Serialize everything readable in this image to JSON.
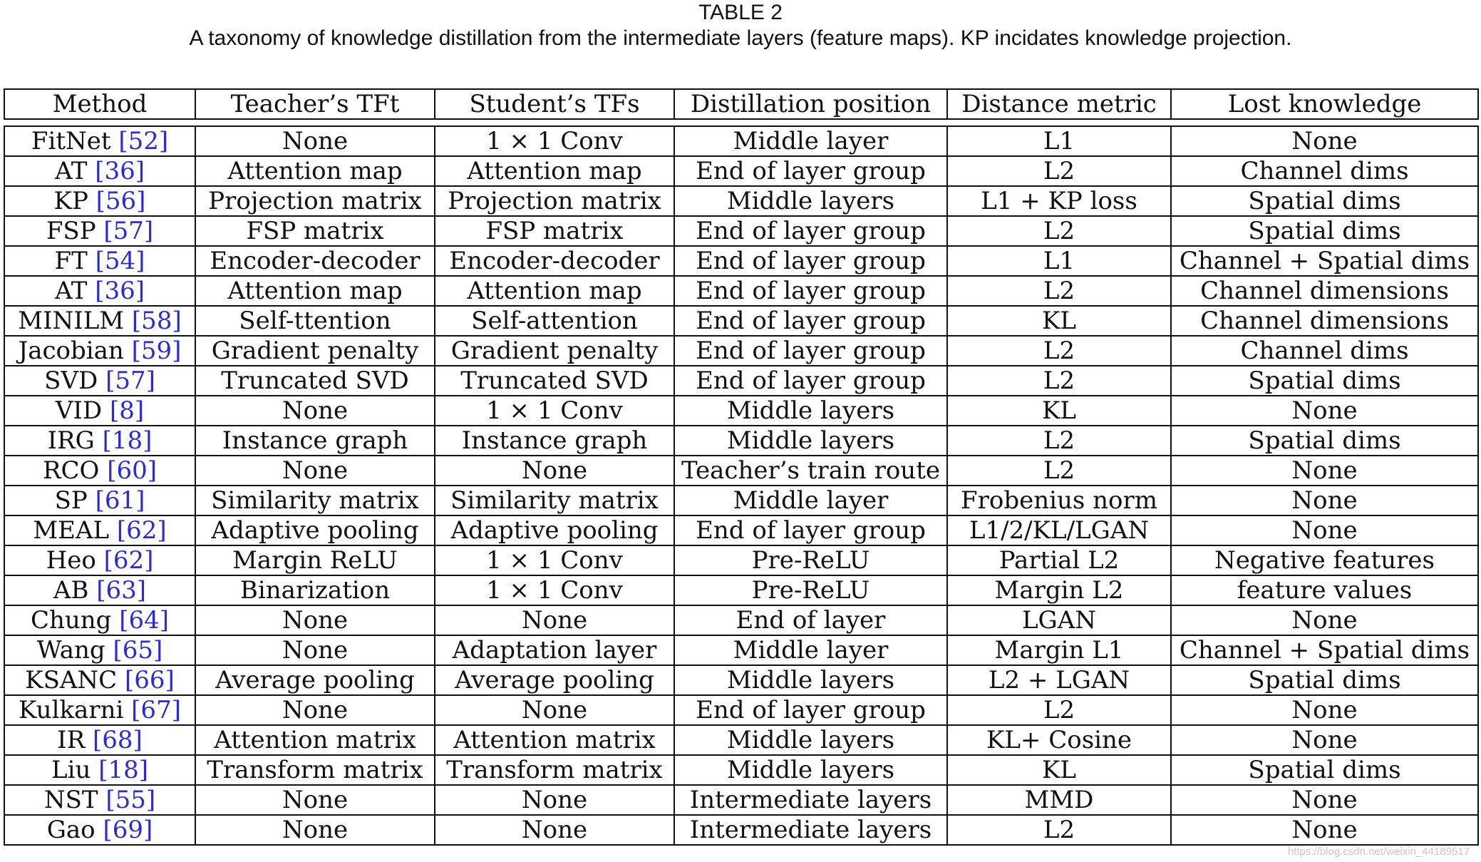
{
  "caption": {
    "label": "TABLE 2",
    "text": "A taxonomy of knowledge distillation from the intermediate layers (feature maps). KP incidates knowledge projection."
  },
  "table": {
    "headers": [
      "Method",
      "Teacher’s TFt",
      "Student’s TFs",
      "Distillation position",
      "Distance metric",
      "Lost knowledge"
    ],
    "rows": [
      {
        "method": "FitNet",
        "ref": "[52]",
        "teacher": "None",
        "student": "1 × 1 Conv",
        "position": "Middle layer",
        "metric": "L1",
        "lost": "None"
      },
      {
        "method": "AT",
        "ref": "[36]",
        "teacher": "Attention map",
        "student": "Attention map",
        "position": "End of layer group",
        "metric": "L2",
        "lost": "Channel dims"
      },
      {
        "method": "KP",
        "ref": "[56]",
        "teacher": "Projection matrix",
        "student": "Projection matrix",
        "position": "Middle layers",
        "metric": "L1 + KP loss",
        "lost": "Spatial dims"
      },
      {
        "method": "FSP",
        "ref": "[57]",
        "teacher": "FSP matrix",
        "student": "FSP matrix",
        "position": "End of layer group",
        "metric": "L2",
        "lost": "Spatial dims"
      },
      {
        "method": "FT",
        "ref": "[54]",
        "teacher": "Encoder-decoder",
        "student": "Encoder-decoder",
        "position": "End of layer group",
        "metric": "L1",
        "lost": "Channel + Spatial dims"
      },
      {
        "method": "AT",
        "ref": "[36]",
        "teacher": "Attention map",
        "student": "Attention map",
        "position": "End of layer group",
        "metric": "L2",
        "lost": "Channel dimensions"
      },
      {
        "method": "MINILM",
        "ref": "[58]",
        "teacher": "Self-ttention",
        "student": "Self-attention",
        "position": "End of layer group",
        "metric": "KL",
        "lost": "Channel dimensions"
      },
      {
        "method": "Jacobian",
        "ref": "[59]",
        "teacher": "Gradient penalty",
        "student": "Gradient penalty",
        "position": "End of layer group",
        "metric": "L2",
        "lost": "Channel dims"
      },
      {
        "method": "SVD",
        "ref": "[57]",
        "teacher": "Truncated SVD",
        "student": "Truncated SVD",
        "position": "End of layer group",
        "metric": "L2",
        "lost": "Spatial dims"
      },
      {
        "method": "VID",
        "ref": "[8]",
        "teacher": "None",
        "student": "1 × 1 Conv",
        "position": "Middle layers",
        "metric": "KL",
        "lost": "None"
      },
      {
        "method": "IRG",
        "ref": "[18]",
        "teacher": "Instance graph",
        "student": "Instance graph",
        "position": "Middle layers",
        "metric": "L2",
        "lost": "Spatial dims"
      },
      {
        "method": "RCO",
        "ref": "[60]",
        "teacher": "None",
        "student": "None",
        "position": "Teacher’s train route",
        "metric": "L2",
        "lost": "None"
      },
      {
        "method": "SP",
        "ref": "[61]",
        "teacher": "Similarity matrix",
        "student": "Similarity matrix",
        "position": "Middle layer",
        "metric": "Frobenius norm",
        "lost": "None"
      },
      {
        "method": "MEAL",
        "ref": "[62]",
        "teacher": "Adaptive pooling",
        "student": "Adaptive pooling",
        "position": "End of layer group",
        "metric": "L1/2/KL/LGAN",
        "lost": "None"
      },
      {
        "method": "Heo",
        "ref": "[62]",
        "teacher": "Margin ReLU",
        "student": "1 × 1 Conv",
        "position": "Pre-ReLU",
        "metric": "Partial L2",
        "lost": "Negative features"
      },
      {
        "method": "AB",
        "ref": "[63]",
        "teacher": "Binarization",
        "student": "1 × 1 Conv",
        "position": "Pre-ReLU",
        "metric": "Margin L2",
        "lost": "feature values"
      },
      {
        "method": "Chung",
        "ref": "[64]",
        "teacher": "None",
        "student": "None",
        "position": "End of layer",
        "metric": "LGAN",
        "lost": "None"
      },
      {
        "method": "Wang",
        "ref": "[65]",
        "teacher": "None",
        "student": "Adaptation layer",
        "position": "Middle layer",
        "metric": "Margin L1",
        "lost": "Channel + Spatial dims"
      },
      {
        "method": "KSANC",
        "ref": "[66]",
        "teacher": "Average pooling",
        "student": "Average pooling",
        "position": "Middle layers",
        "metric": "L2 + LGAN",
        "lost": "Spatial dims"
      },
      {
        "method": "Kulkarni",
        "ref": "[67]",
        "teacher": "None",
        "student": "None",
        "position": "End of layer group",
        "metric": "L2",
        "lost": "None"
      },
      {
        "method": "IR",
        "ref": "[68]",
        "teacher": "Attention matrix",
        "student": "Attention matrix",
        "position": "Middle layers",
        "metric": "KL+ Cosine",
        "lost": "None"
      },
      {
        "method": "Liu",
        "ref": "[18]",
        "teacher": "Transform matrix",
        "student": "Transform matrix",
        "position": "Middle layers",
        "metric": "KL",
        "lost": "Spatial dims"
      },
      {
        "method": "NST",
        "ref": "[55]",
        "teacher": "None",
        "student": "None",
        "position": "Intermediate layers",
        "metric": "MMD",
        "lost": "None"
      },
      {
        "method": "Gao",
        "ref": "[69]",
        "teacher": "None",
        "student": "None",
        "position": "Intermediate layers",
        "metric": "L2",
        "lost": "None"
      }
    ]
  },
  "watermark": "https://blog.csdn.net/weixin_44189517"
}
